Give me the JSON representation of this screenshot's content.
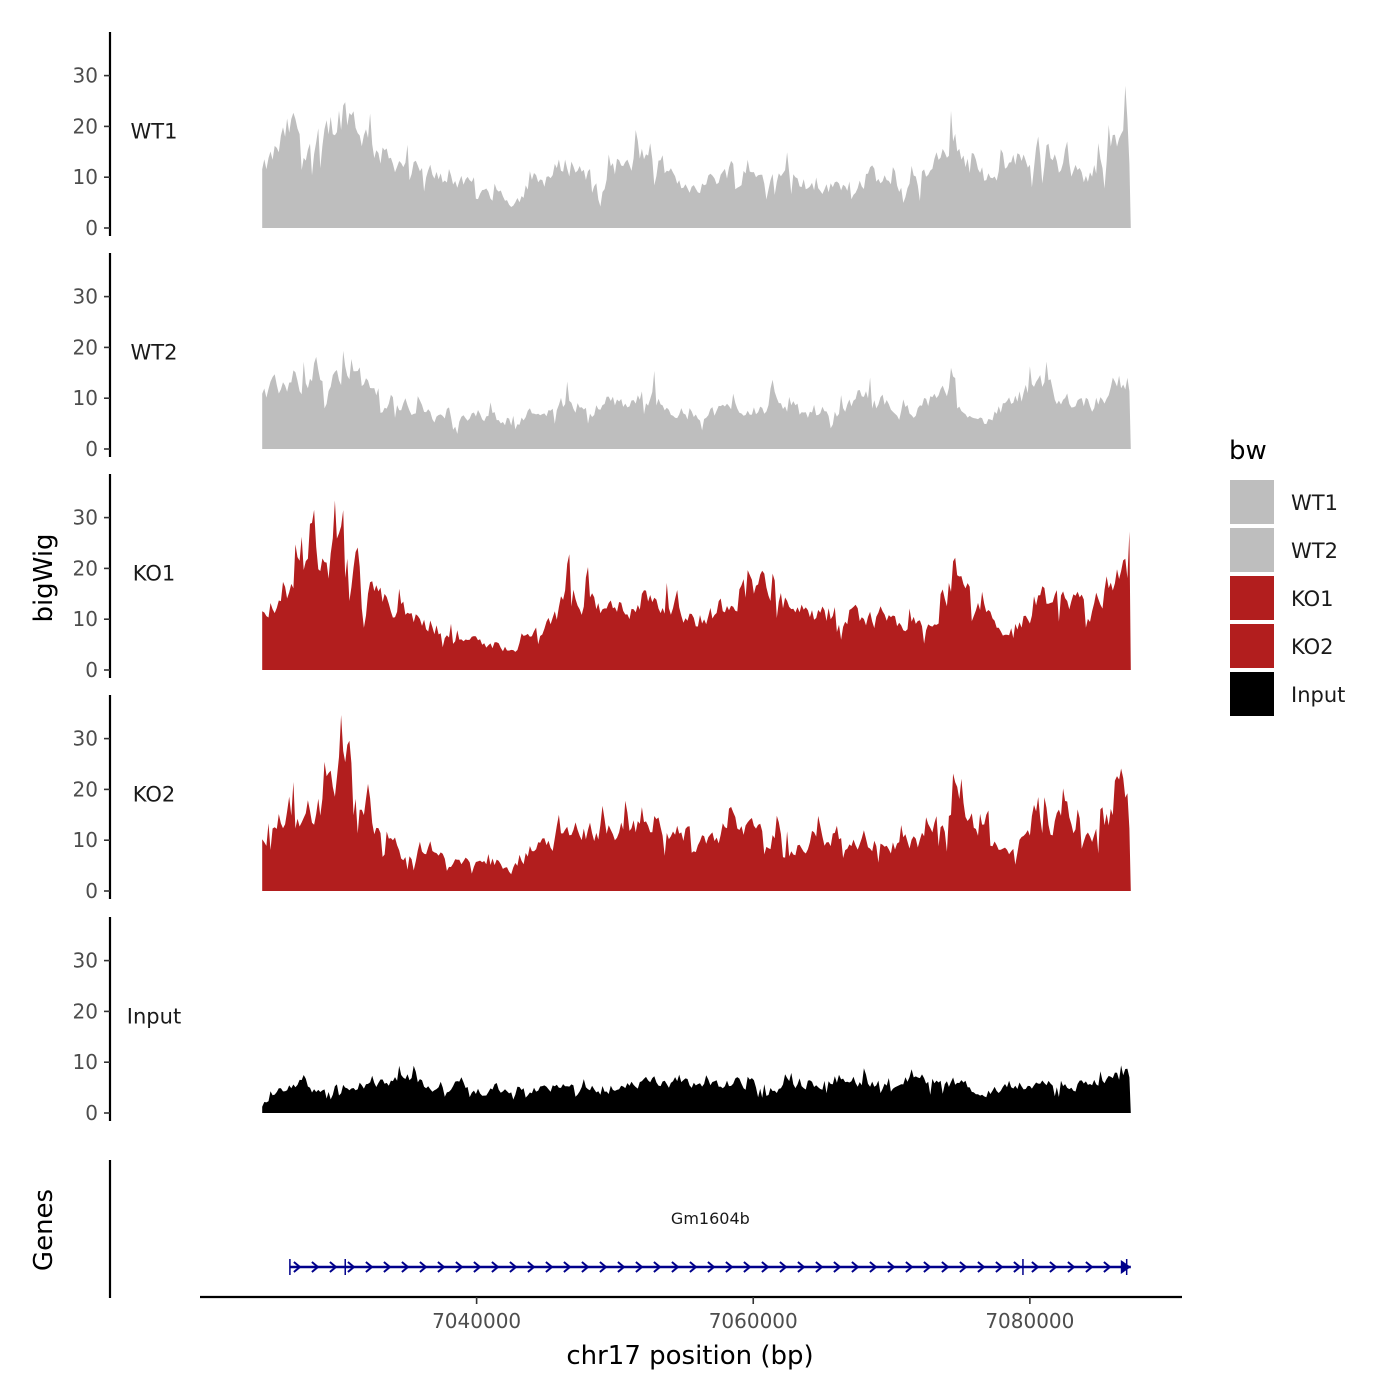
{
  "chart_data": {
    "type": "area",
    "title": "",
    "xlabel": "chr17 position (bp)",
    "ylabel": "bigWig",
    "xlim": [
      7020000,
      7091000
    ],
    "region": [
      7024500,
      7087300
    ],
    "ylim": [
      0,
      38
    ],
    "y_ticks": [
      0,
      10,
      20,
      30
    ],
    "y_tick_labels": [
      "0",
      "10",
      "20",
      "30"
    ],
    "x_ticks": [
      7040000,
      7060000,
      7080000
    ],
    "x_tick_labels": [
      "7040000",
      "7060000",
      "7080000"
    ],
    "grid": false,
    "legend": {
      "title": "bw",
      "position": "right",
      "entries": [
        {
          "name": "WT1",
          "color": "#bebebe"
        },
        {
          "name": "WT2",
          "color": "#bebebe"
        },
        {
          "name": "KO1",
          "color": "#b21e1e"
        },
        {
          "name": "KO2",
          "color": "#b21e1e"
        },
        {
          "name": "Input",
          "color": "#000000"
        }
      ]
    },
    "series": [
      {
        "name": "WT1",
        "color": "#bebebe",
        "x": [
          7024500,
          7026500,
          7028500,
          7030500,
          7032500,
          7034500,
          7036500,
          7038500,
          7040500,
          7042500,
          7044500,
          7046500,
          7048500,
          7050500,
          7052500,
          7054500,
          7056500,
          7058500,
          7060500,
          7062500,
          7064500,
          7066500,
          7068500,
          7070500,
          7072500,
          7074500,
          7076500,
          7078500,
          7080500,
          7082500,
          7084500,
          7086500,
          7087300
        ],
        "values": [
          11,
          20,
          17,
          24,
          15,
          13,
          11,
          9,
          7,
          5,
          9,
          13,
          10,
          11,
          15,
          8,
          9,
          12,
          10,
          11,
          7,
          9,
          10,
          8,
          10,
          17,
          8,
          13,
          15,
          11,
          10,
          21,
          18
        ]
      },
      {
        "name": "WT2",
        "color": "#bebebe",
        "x": [
          7024500,
          7026500,
          7028500,
          7030500,
          7032500,
          7034500,
          7036500,
          7038500,
          7040500,
          7042500,
          7044500,
          7046500,
          7048500,
          7050500,
          7052500,
          7054500,
          7056500,
          7058500,
          7060500,
          7062500,
          7064500,
          7066500,
          7068500,
          7070500,
          7072500,
          7074500,
          7076500,
          7078500,
          7080500,
          7082500,
          7084500,
          7086500,
          7087300
        ],
        "values": [
          10,
          14,
          11,
          15,
          11,
          9,
          6,
          6,
          7,
          5,
          8,
          9,
          8,
          9,
          11,
          7,
          7,
          8,
          8,
          8,
          6,
          8,
          10,
          7,
          9,
          11,
          5,
          9,
          12,
          10,
          9,
          14,
          12
        ]
      },
      {
        "name": "KO1",
        "color": "#b21e1e",
        "x": [
          7024500,
          7026500,
          7028500,
          7030500,
          7032500,
          7034500,
          7036500,
          7038500,
          7040500,
          7042500,
          7044500,
          7046500,
          7048500,
          7050500,
          7052500,
          7054500,
          7056500,
          7058500,
          7060500,
          7062500,
          7064500,
          7066500,
          7068500,
          7070500,
          7072500,
          7074500,
          7076500,
          7078500,
          7080500,
          7082500,
          7084500,
          7086500,
          7087300
        ],
        "values": [
          10,
          18,
          20,
          24,
          14,
          11,
          9,
          6,
          5,
          4,
          8,
          14,
          12,
          12,
          15,
          10,
          10,
          15,
          17,
          12,
          10,
          12,
          10,
          9,
          8,
          18,
          11,
          5,
          14,
          15,
          12,
          21,
          20
        ]
      },
      {
        "name": "KO2",
        "color": "#b21e1e",
        "x": [
          7024500,
          7026500,
          7028500,
          7030500,
          7032500,
          7034500,
          7036500,
          7038500,
          7040500,
          7042500,
          7044500,
          7046500,
          7048500,
          7050500,
          7052500,
          7054500,
          7056500,
          7058500,
          7060500,
          7062500,
          7064500,
          7066500,
          7068500,
          7070500,
          7072500,
          7074500,
          7076500,
          7078500,
          7080500,
          7082500,
          7084500,
          7086500,
          7087300
        ],
        "values": [
          11,
          16,
          16,
          26,
          11,
          7,
          8,
          6,
          5,
          4,
          10,
          11,
          12,
          12,
          13,
          12,
          10,
          14,
          12,
          9,
          10,
          11,
          10,
          9,
          10,
          17,
          12,
          8,
          12,
          15,
          9,
          20,
          22
        ]
      },
      {
        "name": "Input",
        "color": "#000000",
        "x": [
          7024500,
          7026500,
          7028500,
          7030500,
          7032500,
          7034500,
          7036500,
          7038500,
          7040500,
          7042500,
          7044500,
          7046500,
          7048500,
          7050500,
          7052500,
          7054500,
          7056500,
          7058500,
          7060500,
          7062500,
          7064500,
          7066500,
          7068500,
          7070500,
          7072500,
          7074500,
          7076500,
          7078500,
          7080500,
          7082500,
          7084500,
          7086500,
          7087300
        ],
        "values": [
          2,
          6,
          4,
          6,
          5,
          7,
          5,
          6,
          4,
          5,
          5,
          5,
          4,
          5,
          6,
          6,
          5,
          6,
          5,
          5,
          6,
          7,
          6,
          7,
          5,
          6,
          4,
          5,
          6,
          5,
          6,
          7,
          8
        ]
      }
    ],
    "gene_track": {
      "label": "Genes",
      "genes": [
        {
          "name": "Gm1604b",
          "start": 7026500,
          "end": 7087300,
          "strand": "+",
          "color": "#00008b",
          "exons": [
            7026500,
            7030500,
            7079500,
            7087000
          ]
        }
      ]
    }
  }
}
